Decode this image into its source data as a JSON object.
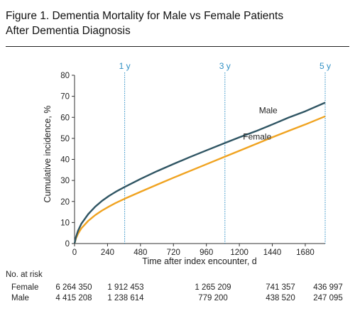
{
  "figure": {
    "title_line1": "Figure 1. Dementia Mortality for Male vs Female Patients",
    "title_line2": "After Dementia Diagnosis"
  },
  "chart_data": {
    "type": "line",
    "xlabel": "Time after index encounter, d",
    "ylabel": "Cumulative incidence, %",
    "xlim": [
      0,
      1825
    ],
    "ylim": [
      0,
      80
    ],
    "xticks": [
      0,
      240,
      480,
      720,
      960,
      1200,
      1440,
      1680
    ],
    "yticks": [
      0,
      10,
      20,
      30,
      40,
      50,
      60,
      70,
      80
    ],
    "grid": false,
    "reference_lines": [
      {
        "label": "1 y",
        "x": 365
      },
      {
        "label": "3 y",
        "x": 1095
      },
      {
        "label": "5 y",
        "x": 1825
      }
    ],
    "series": [
      {
        "name": "Male",
        "color": "#2f5563",
        "x": [
          0,
          10,
          25,
          50,
          100,
          150,
          200,
          250,
          300,
          365,
          480,
          600,
          720,
          840,
          960,
          1095,
          1200,
          1320,
          1440,
          1560,
          1680,
          1825
        ],
        "y": [
          0,
          3,
          6,
          9.5,
          14,
          17.5,
          20.3,
          22.6,
          24.6,
          26.9,
          30.7,
          34.4,
          37.8,
          41.1,
          44.3,
          47.8,
          50.5,
          53.4,
          56.6,
          59.9,
          62.9,
          67
        ]
      },
      {
        "name": "Female",
        "color": "#f0a320",
        "x": [
          0,
          10,
          25,
          50,
          100,
          150,
          200,
          250,
          300,
          365,
          480,
          600,
          720,
          840,
          960,
          1095,
          1200,
          1320,
          1440,
          1560,
          1680,
          1825
        ],
        "y": [
          0,
          2.4,
          4.6,
          7.3,
          10.8,
          13.5,
          15.7,
          17.6,
          19.3,
          21.3,
          24.6,
          28,
          31.3,
          34.5,
          37.7,
          41.3,
          44.1,
          47.3,
          50.5,
          53.6,
          56.6,
          60.5
        ]
      }
    ],
    "annotations": [
      {
        "text": "Male",
        "series": "Male"
      },
      {
        "text": "Female",
        "series": "Female"
      }
    ]
  },
  "at_risk": {
    "heading": "No. at risk",
    "rows": [
      {
        "label": "Female",
        "values": [
          "6 264 350",
          "1 912 453",
          "1 265 209",
          "741 357",
          "436 997"
        ]
      },
      {
        "label": "Male",
        "values": [
          "4 415 208",
          "1 238 614",
          "779 200",
          "438 520",
          "247 095"
        ]
      }
    ]
  }
}
